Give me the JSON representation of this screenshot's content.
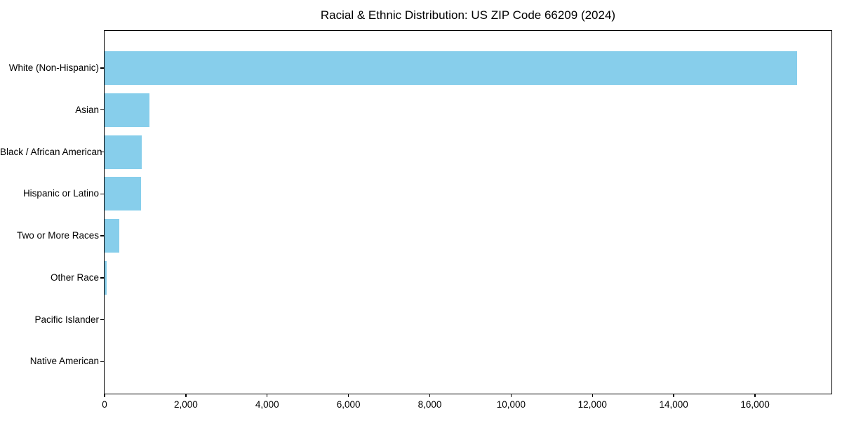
{
  "figure": {
    "background_color": "#ffffff",
    "text_color": "#000000",
    "spine_color": "#000000"
  },
  "chart_data": {
    "type": "bar",
    "orientation": "horizontal",
    "title": "Racial & Ethnic Distribution: US ZIP Code 66209 (2024)",
    "categories": [
      "White (Non-Hispanic)",
      "Asian",
      "Black / African American",
      "Hispanic or Latino",
      "Two or More Races",
      "Other Race",
      "Pacific Islander",
      "Native American"
    ],
    "values": [
      17030,
      1110,
      915,
      905,
      360,
      50,
      0,
      0
    ],
    "bar_color": "#87CEEB",
    "xlabel": "",
    "ylabel": "",
    "xlim": [
      0,
      17880
    ],
    "x_ticks": [
      0,
      2000,
      4000,
      6000,
      8000,
      10000,
      12000,
      14000,
      16000
    ],
    "x_tick_labels": [
      "0",
      "2,000",
      "4,000",
      "6,000",
      "8,000",
      "10,000",
      "12,000",
      "14,000",
      "16,000"
    ],
    "grid": false,
    "legend": null,
    "largest_category_on_top": true
  }
}
